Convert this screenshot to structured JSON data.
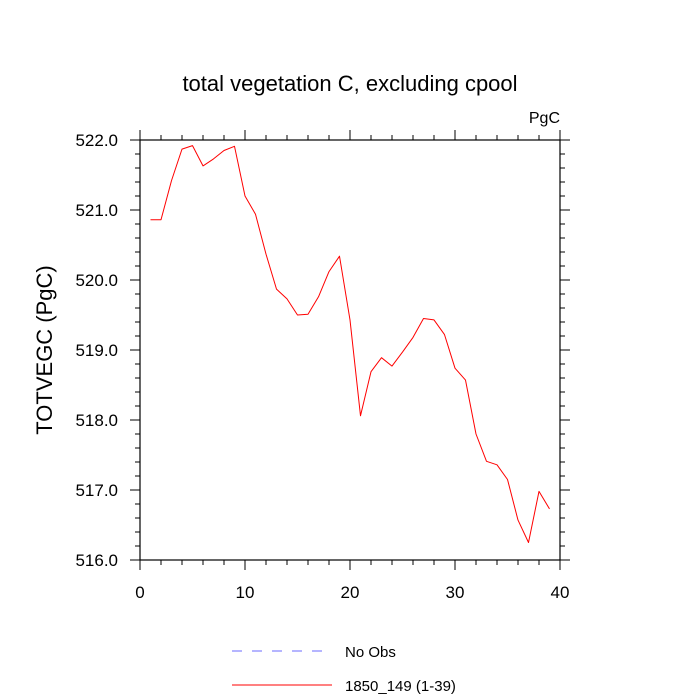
{
  "chart_data": {
    "type": "line",
    "title": "total vegetation C, excluding cpool",
    "units": "PgC",
    "ylabel": "TOTVEGC  (PgC)",
    "xlabel": "",
    "xlim": [
      0,
      40
    ],
    "ylim": [
      516.0,
      522.0
    ],
    "xticks": [
      0,
      10,
      20,
      30,
      40
    ],
    "yticks": [
      516.0,
      517.0,
      518.0,
      519.0,
      520.0,
      521.0,
      522.0
    ],
    "xtick_labels": [
      "0",
      "10",
      "20",
      "30",
      "40"
    ],
    "ytick_labels": [
      "516.0",
      "517.0",
      "518.0",
      "519.0",
      "520.0",
      "521.0",
      "522.0"
    ],
    "grid": false,
    "legend_position": "bottom",
    "series": [
      {
        "name": "1850_149 (1-39)",
        "color": "#ff0000",
        "style": "solid",
        "x": [
          1,
          2,
          3,
          4,
          5,
          6,
          7,
          8,
          9,
          10,
          11,
          12,
          13,
          14,
          15,
          16,
          17,
          18,
          19,
          20,
          21,
          22,
          23,
          24,
          25,
          26,
          27,
          28,
          29,
          30,
          31,
          32,
          33,
          34,
          35,
          36,
          37,
          38,
          39
        ],
        "values": [
          520.86,
          520.86,
          521.42,
          521.87,
          521.92,
          521.63,
          521.73,
          521.85,
          521.91,
          521.2,
          520.94,
          520.37,
          519.87,
          519.73,
          519.5,
          519.51,
          519.76,
          520.12,
          520.34,
          519.43,
          518.06,
          518.69,
          518.89,
          518.77,
          518.97,
          519.18,
          519.45,
          519.43,
          519.22,
          518.74,
          518.57,
          517.8,
          517.41,
          517.36,
          517.15,
          516.57,
          516.25,
          516.98,
          516.73
        ]
      }
    ],
    "legend": [
      {
        "label": "No Obs",
        "color": "#6b6bff",
        "style": "dashed"
      },
      {
        "label": "1850_149 (1-39)",
        "color": "#ff0000",
        "style": "solid"
      }
    ]
  }
}
